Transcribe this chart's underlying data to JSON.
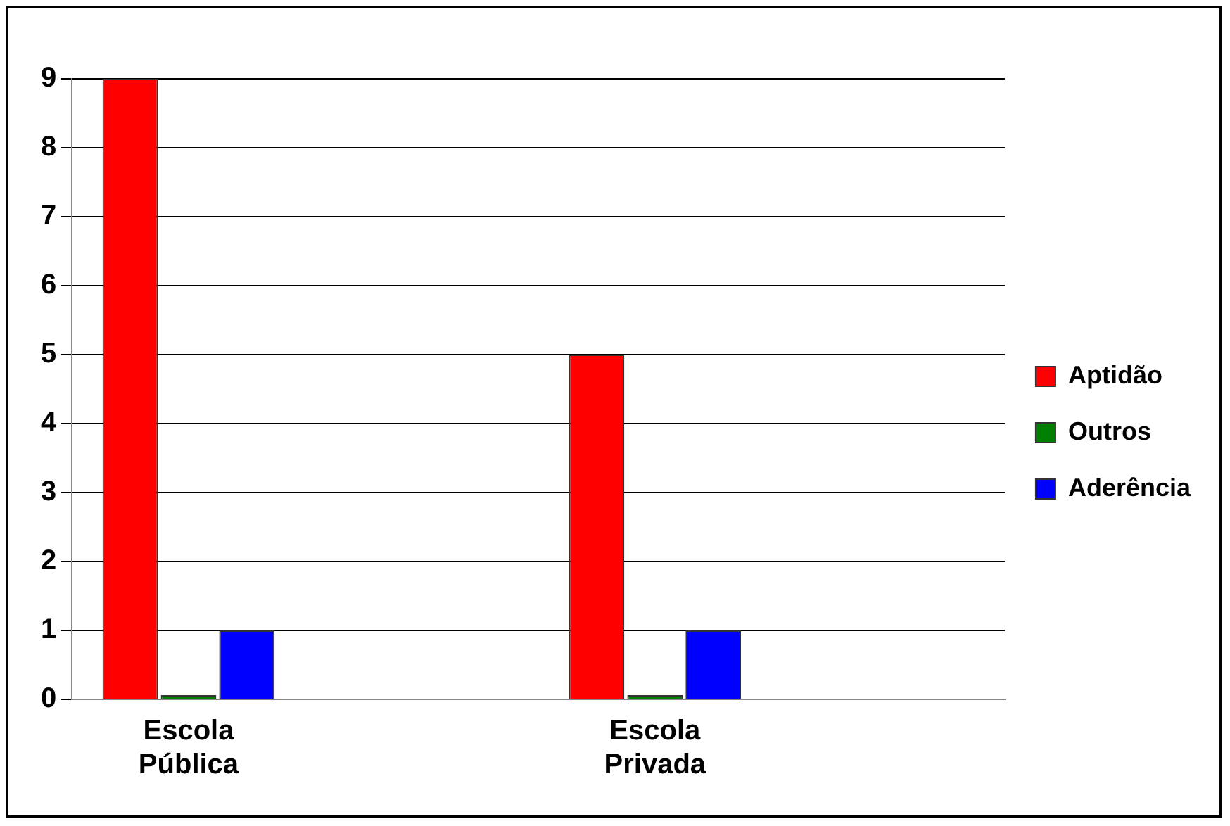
{
  "chart_data": {
    "type": "bar",
    "categories": [
      "Escola Pública",
      null,
      "Escola Privada",
      null
    ],
    "series": [
      {
        "name": "Aptidão",
        "color": "#ff0000",
        "values": [
          9,
          null,
          5,
          null
        ]
      },
      {
        "name": "Outros",
        "color": "#008000",
        "values": [
          0,
          null,
          0,
          null
        ]
      },
      {
        "name": "Aderência",
        "color": "#0000ff",
        "values": [
          1,
          null,
          1,
          null
        ]
      }
    ],
    "ylim": [
      0,
      9
    ],
    "yticks": [
      0,
      1,
      2,
      3,
      4,
      5,
      6,
      7,
      8,
      9
    ],
    "grid": "y",
    "legend": "right"
  }
}
